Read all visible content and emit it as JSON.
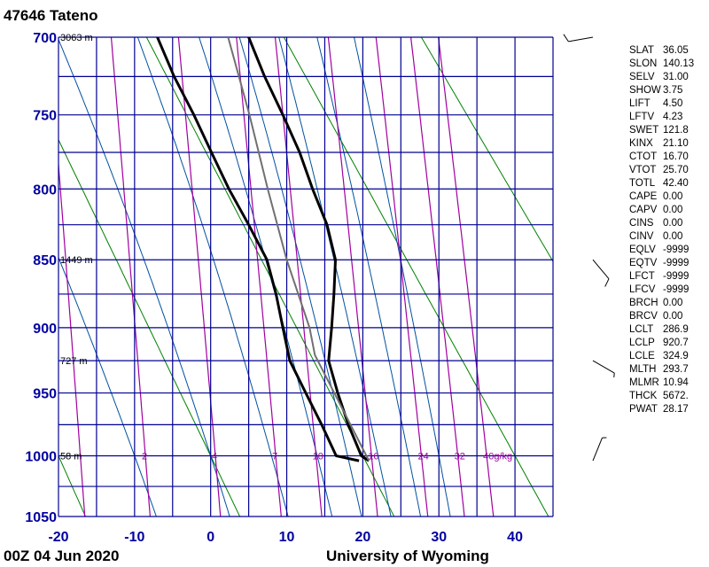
{
  "header": {
    "station": "47646  Tateno"
  },
  "footer": {
    "time": "00Z 04 Jun 2020",
    "source": "University of Wyoming"
  },
  "chart_data": {
    "type": "line",
    "diagram": "Stuve thermodynamic diagram",
    "y_axis": {
      "quantity": "pressure hPa",
      "range": [
        1050,
        700
      ],
      "ticks": [
        "700",
        "750",
        "800",
        "850",
        "900",
        "950",
        "1000",
        "1050"
      ],
      "scale": "p^0.286"
    },
    "x_axis": {
      "quantity": "temperature °C",
      "range": [
        -20,
        45
      ],
      "ticks": [
        "-20",
        "-10",
        "0",
        "10",
        "20",
        "30",
        "40"
      ]
    },
    "height_labels": [
      {
        "p": 700,
        "text": "3063 m"
      },
      {
        "p": 850,
        "text": "1449 m"
      },
      {
        "p": 925,
        "text": "727 m"
      },
      {
        "p": 1000,
        "text": "58 m"
      }
    ],
    "mixing_ratio_lines": [
      1,
      2,
      4,
      7,
      10,
      16,
      24,
      32,
      40
    ],
    "mixing_ratio_labels": [
      "",
      "2",
      "4",
      "7",
      "10",
      "16",
      "24",
      "32",
      "40g/kg"
    ],
    "dry_adiabats_theta_C": [
      -40,
      -20,
      0,
      20,
      40,
      60,
      80,
      100
    ],
    "moist_adiabats_1000hPa_C": [
      -10,
      0,
      8,
      14,
      18,
      22,
      26,
      30
    ],
    "series": [
      {
        "key": "temperature",
        "color": "#000000",
        "points": [
          [
            1004,
            20.8
          ],
          [
            1000,
            19.8
          ],
          [
            975,
            18.1
          ],
          [
            950,
            16.7
          ],
          [
            925,
            15.5
          ],
          [
            900,
            15.9
          ],
          [
            875,
            16.2
          ],
          [
            850,
            16.4
          ],
          [
            825,
            15.3
          ],
          [
            800,
            13.4
          ],
          [
            775,
            11.7
          ],
          [
            750,
            9.5
          ],
          [
            725,
            7.1
          ],
          [
            700,
            5.0
          ]
        ]
      },
      {
        "key": "dewpoint",
        "color": "#000000",
        "points": [
          [
            1004,
            19.5
          ],
          [
            1000,
            16.5
          ],
          [
            975,
            14.6
          ],
          [
            950,
            12.5
          ],
          [
            925,
            10.4
          ],
          [
            900,
            9.5
          ],
          [
            875,
            8.6
          ],
          [
            850,
            7.4
          ],
          [
            825,
            5.0
          ],
          [
            800,
            2.4
          ],
          [
            775,
            0.1
          ],
          [
            750,
            -2.2
          ],
          [
            725,
            -4.8
          ],
          [
            700,
            -7.0
          ]
        ]
      },
      {
        "key": "parcel",
        "color": "#707070",
        "points": [
          [
            1004,
            20.8
          ],
          [
            920.7,
            13.7
          ],
          [
            900,
            13.0
          ],
          [
            850,
            10.0
          ],
          [
            800,
            7.5
          ],
          [
            750,
            5.1
          ],
          [
            700,
            2.3
          ]
        ]
      }
    ],
    "winds": [
      {
        "p": 700,
        "dir": 260,
        "spd": 10
      },
      {
        "p": 850,
        "dir": 140,
        "spd": 10
      },
      {
        "p": 925,
        "dir": 120,
        "spd": 5
      },
      {
        "p": 1004,
        "dir": 22,
        "spd": 5
      }
    ],
    "colors": {
      "grid": "#000090",
      "dry_adiabat": "#008000",
      "moist_adiabat": "#0050a0",
      "mixing_ratio": "#a000a0"
    }
  },
  "indices": [
    {
      "k": "SLAT",
      "v": "36.05"
    },
    {
      "k": "SLON",
      "v": "140.13"
    },
    {
      "k": "SELV",
      "v": "31.00"
    },
    {
      "k": "SHOW",
      "v": "3.75"
    },
    {
      "k": "LIFT",
      "v": "4.50"
    },
    {
      "k": "LFTV",
      "v": "4.23"
    },
    {
      "k": "SWET",
      "v": "121.8"
    },
    {
      "k": "KINX",
      "v": "21.10"
    },
    {
      "k": "CTOT",
      "v": "16.70"
    },
    {
      "k": "VTOT",
      "v": "25.70"
    },
    {
      "k": "TOTL",
      "v": "42.40"
    },
    {
      "k": "CAPE",
      "v": "0.00"
    },
    {
      "k": "CAPV",
      "v": "0.00"
    },
    {
      "k": "CINS",
      "v": "0.00"
    },
    {
      "k": "CINV",
      "v": "0.00"
    },
    {
      "k": "EQLV",
      "v": "-9999"
    },
    {
      "k": "EQTV",
      "v": "-9999"
    },
    {
      "k": "LFCT",
      "v": "-9999"
    },
    {
      "k": "LFCV",
      "v": "-9999"
    },
    {
      "k": "BRCH",
      "v": "0.00"
    },
    {
      "k": "BRCV",
      "v": "0.00"
    },
    {
      "k": "LCLT",
      "v": "286.9"
    },
    {
      "k": "LCLP",
      "v": "920.7"
    },
    {
      "k": "LCLE",
      "v": "324.9"
    },
    {
      "k": "MLTH",
      "v": "293.7"
    },
    {
      "k": "MLMR",
      "v": "10.94"
    },
    {
      "k": "THCK",
      "v": "5672."
    },
    {
      "k": "PWAT",
      "v": "28.17"
    }
  ]
}
